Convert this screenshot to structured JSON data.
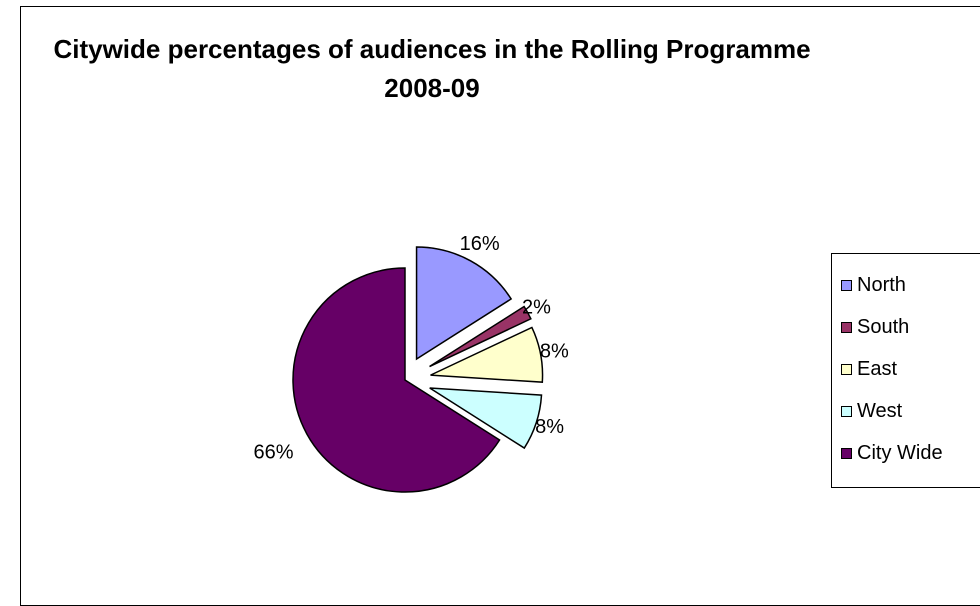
{
  "chart_data": {
    "type": "pie",
    "title": "Citywide percentages of audiences in the Rolling Programme 2008-09",
    "categories": [
      "North",
      "South",
      "East",
      "West",
      "City Wide"
    ],
    "values": [
      16,
      2,
      8,
      8,
      66
    ],
    "labels": [
      "16%",
      "2%",
      "8%",
      "8%",
      "66%"
    ],
    "colors": [
      "#9999FF",
      "#993366",
      "#FFFFCC",
      "#CCFFFF",
      "#660066"
    ],
    "exploded": true,
    "legend_position": "right"
  }
}
